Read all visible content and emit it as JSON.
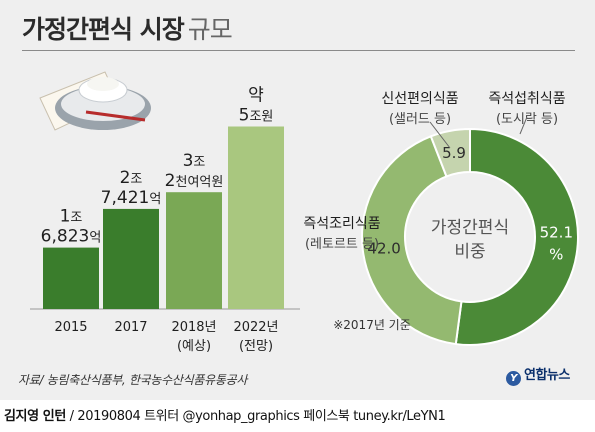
{
  "title": "가정간편식 시장",
  "title_unit": "규모",
  "chart_data": [
    {
      "type": "bar",
      "categories": [
        "2015",
        "2017",
        "2018년",
        "2022년"
      ],
      "category_notes": [
        "",
        "",
        "(예상)",
        "(전망)"
      ],
      "values": [
        16823,
        27421,
        32000,
        50000
      ],
      "value_unit": "억원",
      "value_labels": [
        {
          "lines": [
            [
              "1",
              "조"
            ],
            [
              "6,823",
              "억"
            ]
          ]
        },
        {
          "lines": [
            [
              "2",
              "조"
            ],
            [
              "7,421",
              "억"
            ]
          ]
        },
        {
          "lines": [
            [
              "3",
              "조"
            ],
            [
              "2",
              "천여억원"
            ]
          ]
        },
        {
          "lines": [
            [
              "약 ",
              ""
            ],
            [
              "5",
              "조원"
            ]
          ]
        }
      ],
      "colors": [
        "#3a7d2c",
        "#3a7d2c",
        "#7aa855",
        "#a9c77f"
      ],
      "ylim": [
        0,
        60000
      ]
    },
    {
      "type": "pie",
      "title": "가정간편식 비중",
      "center_lines": [
        "가정간편식",
        "비중"
      ],
      "note": "※2017년 기준",
      "series": [
        {
          "name": "즉석섭취식품",
          "sub": "(도시락 등)",
          "value": 52.1,
          "label_lines": [
            "52.1",
            "%"
          ],
          "color": "#4b8a37"
        },
        {
          "name": "즉석조리식품",
          "sub": "(레토르트 등)",
          "value": 42.0,
          "label_lines": [
            "42.0"
          ],
          "color": "#94b970"
        },
        {
          "name": "신선편의식품",
          "sub": "(샐러드 등)",
          "value": 5.9,
          "label_lines": [
            "5.9"
          ],
          "color": "#c5d4ae"
        }
      ]
    }
  ],
  "source": "자료/ 농림축산식품부, 한국농수산식품유통공사",
  "logo": {
    "icon": "Y",
    "text": "연합뉴스"
  },
  "credit": {
    "name": "김지영 인턴",
    "text": " / 20190804  트위터 @yonhap_graphics  페이스북 tuney.kr/LeYN1"
  }
}
